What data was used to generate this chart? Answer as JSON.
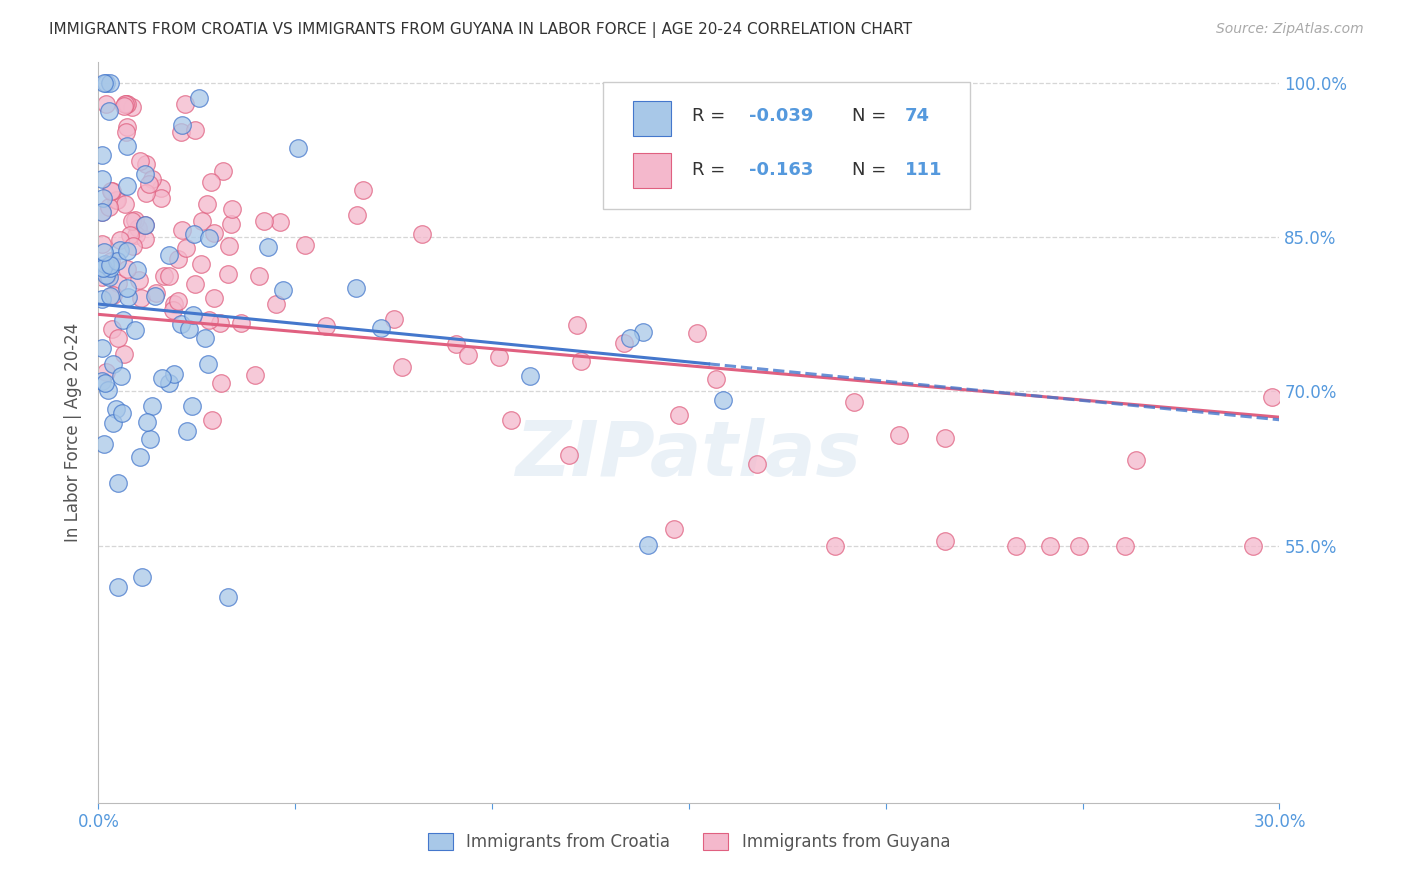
{
  "title": "IMMIGRANTS FROM CROATIA VS IMMIGRANTS FROM GUYANA IN LABOR FORCE | AGE 20-24 CORRELATION CHART",
  "source": "Source: ZipAtlas.com",
  "ylabel": "In Labor Force | Age 20-24",
  "xlim": [
    0.0,
    0.3
  ],
  "ylim": [
    0.3,
    1.02
  ],
  "yticks": [
    0.55,
    0.7,
    0.85,
    1.0
  ],
  "ytick_labels": [
    "55.0%",
    "70.0%",
    "85.0%",
    "100.0%"
  ],
  "xtick_labels": [
    "0.0%",
    "",
    "",
    "",
    "",
    "",
    "30.0%"
  ],
  "croatia_color": "#a8c8e8",
  "guyana_color": "#f4b8cc",
  "trend_croatia_color": "#4477cc",
  "trend_guyana_color": "#e06080",
  "watermark": "ZIPatlas",
  "background_color": "#ffffff",
  "grid_color": "#cccccc",
  "axis_label_color": "#5599dd",
  "title_color": "#333333",
  "legend_R_label_color": "#333333",
  "legend_value_color": "#5599dd",
  "source_color": "#aaaaaa",
  "ylabel_color": "#555555"
}
